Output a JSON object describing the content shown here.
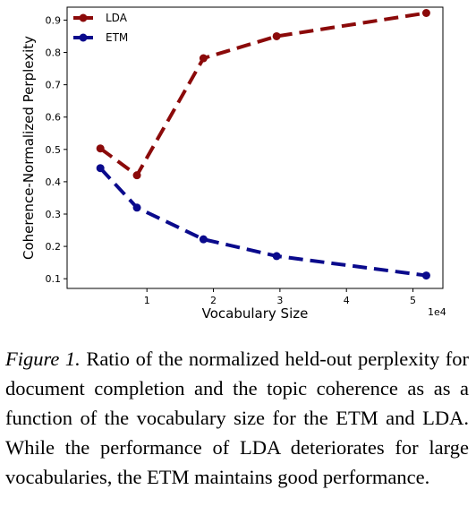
{
  "chart_data": {
    "type": "line",
    "xlabel": "Vocabulary Size",
    "ylabel": "Coherence-Normalized Perplexity",
    "x_offset_label": "1e4",
    "xlim": [
      -0.2,
      5.45
    ],
    "ylim": [
      0.07,
      0.94
    ],
    "xticks": [
      1,
      2,
      3,
      4,
      5
    ],
    "yticks": [
      0.1,
      0.2,
      0.3,
      0.4,
      0.5,
      0.6,
      0.7,
      0.8,
      0.9
    ],
    "legend_position": "top-left",
    "grid": false,
    "series": [
      {
        "name": "LDA",
        "color": "#8b0a0a",
        "x": [
          0.3,
          0.85,
          1.85,
          2.95,
          5.2
        ],
        "y": [
          0.503,
          0.42,
          0.782,
          0.85,
          0.922
        ]
      },
      {
        "name": "ETM",
        "color": "#0a0a8c",
        "x": [
          0.3,
          0.85,
          1.85,
          2.95,
          5.2
        ],
        "y": [
          0.442,
          0.32,
          0.222,
          0.17,
          0.11
        ]
      }
    ]
  },
  "caption": {
    "label": "Figure 1.",
    "text": "Ratio of the normalized held-out perplexity for document completion and the topic coherence as as a function of the vocabulary size for the ETM and LDA. While the performance of LDA deteriorates for large vocabularies, the ETM maintains good performance."
  }
}
